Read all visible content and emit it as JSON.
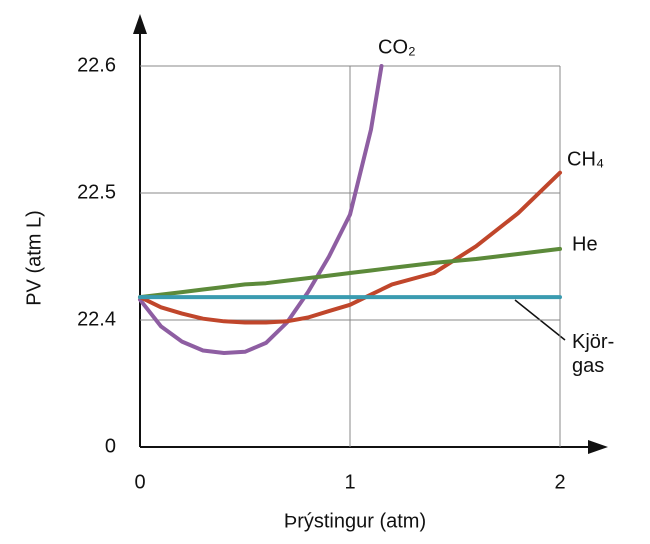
{
  "chart_data": {
    "type": "line",
    "xlabel": "Þrýstingur (atm)",
    "ylabel": "PV (atm L)",
    "x": [
      0,
      0.1,
      0.2,
      0.3,
      0.4,
      0.5,
      0.6,
      0.7,
      0.8,
      0.9,
      1,
      1.1,
      1.15,
      1.2,
      1.4,
      1.6,
      1.8,
      2
    ],
    "series": [
      {
        "name": "CO₂",
        "color": "#8e5ea2",
        "values": [
          22.416,
          22.395,
          22.383,
          22.376,
          22.374,
          22.375,
          22.382,
          22.398,
          22.422,
          22.45,
          22.483,
          22.55,
          22.6,
          null,
          null,
          null,
          null,
          null
        ]
      },
      {
        "name": "CH₄",
        "color": "#c0462b",
        "values": [
          22.418,
          22.41,
          22.405,
          22.401,
          22.399,
          22.398,
          22.398,
          22.399,
          22.402,
          22.407,
          22.412,
          22.42,
          22.424,
          22.428,
          22.437,
          22.458,
          22.484,
          22.516
        ]
      },
      {
        "name": "He",
        "color": "#5c8a3a",
        "values": [
          22.418,
          22.42,
          22.422,
          22.424,
          22.426,
          22.428,
          22.429,
          22.431,
          22.433,
          22.435,
          22.437,
          22.439,
          22.44,
          22.441,
          22.445,
          22.448,
          22.452,
          22.456
        ]
      },
      {
        "name": "Kjör-gas",
        "color": "#3a9bb0",
        "values": [
          22.418,
          22.418,
          22.418,
          22.418,
          22.418,
          22.418,
          22.418,
          22.418,
          22.418,
          22.418,
          22.418,
          22.418,
          22.418,
          22.418,
          22.418,
          22.418,
          22.418,
          22.418
        ]
      }
    ],
    "xlim": [
      0,
      2
    ],
    "xticks": [
      0,
      1,
      2
    ],
    "ylim": [
      0,
      22.6
    ],
    "y_break": [
      0,
      22.3
    ],
    "yticks": [
      0,
      22.4,
      22.5,
      22.6
    ],
    "grid": true
  }
}
